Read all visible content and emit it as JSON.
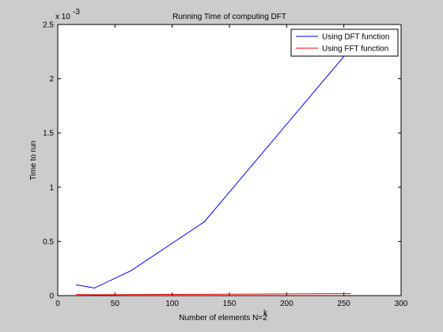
{
  "chart_data": {
    "type": "line",
    "title": "Running Time of computing DFT",
    "xlabel": "Number of elements N=2",
    "xlabel_superscript": "k",
    "ylabel": "Time to run",
    "y_exponent_base": "x 10",
    "y_exponent_power": "-3",
    "xlim": [
      0,
      300
    ],
    "ylim": [
      0,
      0.0025
    ],
    "x_ticks": [
      0,
      50,
      100,
      150,
      200,
      250,
      300
    ],
    "x_tick_labels": [
      "0",
      "50",
      "100",
      "150",
      "200",
      "250",
      "300"
    ],
    "y_ticks": [
      0,
      0.0005,
      0.001,
      0.0015,
      0.002,
      0.0025
    ],
    "y_tick_labels": [
      "0",
      "0.5",
      "1",
      "1.5",
      "2",
      "2.5"
    ],
    "grid": false,
    "legend_position": "top-right",
    "series": [
      {
        "name": "Using DFT function",
        "color": "#0000ff",
        "x": [
          16,
          32,
          64,
          128,
          256
        ],
        "y": [
          0.0001,
          7e-05,
          0.00023,
          0.00068,
          0.00228
        ]
      },
      {
        "name": "Using FFT function",
        "color": "#ff0000",
        "x": [
          16,
          32,
          64,
          128,
          256
        ],
        "y": [
          1e-05,
          8e-06,
          1e-05,
          1.2e-05,
          1.8e-05
        ]
      }
    ]
  },
  "colors": {
    "figure_background": "#cccccc",
    "axes_background": "#ffffff"
  }
}
